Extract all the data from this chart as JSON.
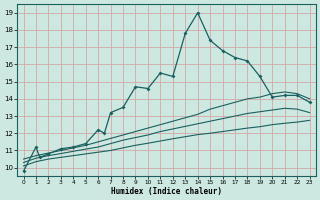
{
  "xlabel": "Humidex (Indice chaleur)",
  "xlim": [
    -0.5,
    23.5
  ],
  "ylim": [
    9.5,
    19.5
  ],
  "bg_color": "#cce8e0",
  "grid_color": "#d4a8a8",
  "line_color": "#1a6060",
  "x_main": [
    0,
    1,
    1.3,
    2,
    3,
    4,
    5,
    6,
    6.5,
    7,
    8,
    9,
    10,
    11,
    12,
    13,
    14,
    15,
    16,
    17,
    18,
    19,
    20,
    21,
    22,
    23
  ],
  "y_main": [
    9.8,
    11.2,
    10.6,
    10.8,
    11.1,
    11.2,
    11.4,
    12.2,
    12.0,
    13.2,
    13.5,
    14.7,
    14.6,
    15.5,
    15.3,
    17.8,
    19.0,
    17.4,
    16.8,
    16.4,
    16.2,
    15.3,
    14.1,
    14.2,
    14.2,
    13.8
  ],
  "x_bound": [
    0,
    1,
    2,
    3,
    4,
    5,
    6,
    7,
    8,
    9,
    10,
    11,
    12,
    13,
    14,
    15,
    16,
    17,
    18,
    19,
    20,
    21,
    22,
    23
  ],
  "y_upper": [
    10.5,
    10.7,
    10.85,
    11.0,
    11.15,
    11.3,
    11.5,
    11.7,
    11.9,
    12.1,
    12.3,
    12.5,
    12.7,
    12.9,
    13.1,
    13.4,
    13.6,
    13.8,
    14.0,
    14.1,
    14.3,
    14.4,
    14.3,
    14.0
  ],
  "y_mid": [
    10.3,
    10.55,
    10.7,
    10.82,
    10.95,
    11.08,
    11.2,
    11.4,
    11.6,
    11.75,
    11.9,
    12.1,
    12.25,
    12.4,
    12.55,
    12.7,
    12.85,
    13.0,
    13.15,
    13.25,
    13.35,
    13.45,
    13.4,
    13.2
  ],
  "y_lower": [
    10.1,
    10.35,
    10.5,
    10.6,
    10.7,
    10.8,
    10.9,
    11.0,
    11.15,
    11.3,
    11.42,
    11.55,
    11.68,
    11.8,
    11.92,
    12.0,
    12.1,
    12.2,
    12.3,
    12.38,
    12.5,
    12.58,
    12.65,
    12.75
  ]
}
